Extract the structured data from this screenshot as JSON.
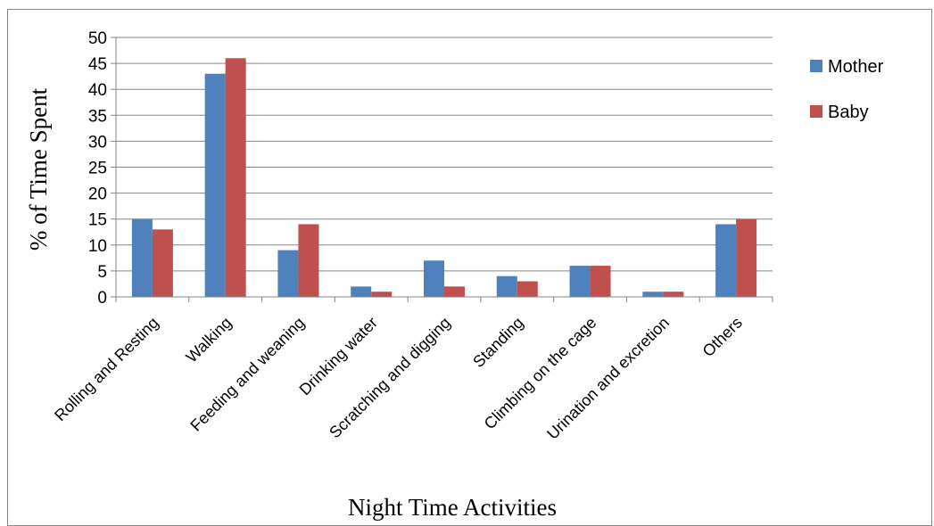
{
  "chart_data": {
    "type": "bar",
    "title": "",
    "xlabel": "Night Time Activities",
    "ylabel": "% of Time Spent",
    "ylim": [
      0,
      50
    ],
    "yticks": [
      0,
      5,
      10,
      15,
      20,
      25,
      30,
      35,
      40,
      45,
      50
    ],
    "grid": true,
    "legend_position": "right",
    "categories": [
      "Rolling and Resting",
      "Walking",
      "Feeding and weaning",
      "Drinking water",
      "Scratching and digging",
      "Standing",
      "Climbing on the cage",
      "Urination and excretion",
      "Others"
    ],
    "series": [
      {
        "name": "Mother",
        "color": "#4F81BD",
        "values": [
          15,
          43,
          9,
          2,
          7,
          4,
          6,
          1,
          14
        ]
      },
      {
        "name": "Baby",
        "color": "#C0504D",
        "values": [
          13,
          46,
          14,
          1,
          2,
          3,
          6,
          1,
          15
        ]
      }
    ]
  }
}
